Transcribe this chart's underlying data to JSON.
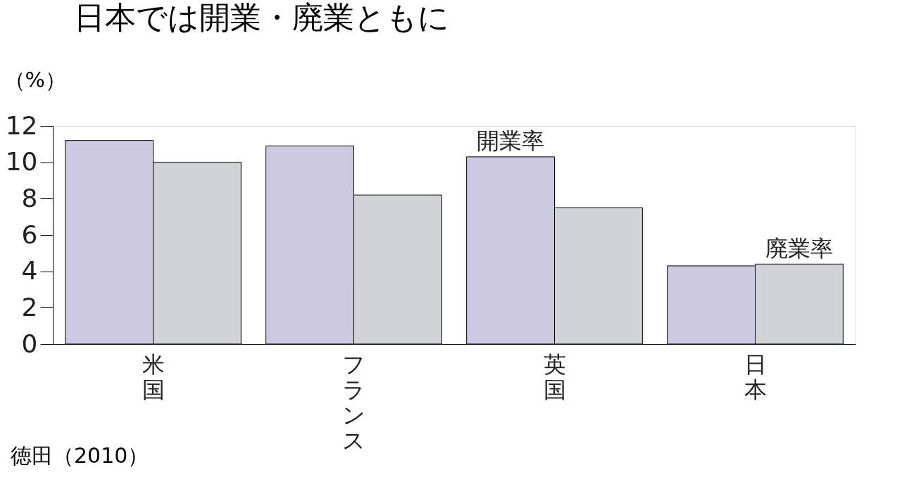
{
  "chart_data": {
    "type": "bar",
    "title": "日本では開業・廃業ともに",
    "ylabel": "（%）",
    "categories": [
      "米国",
      "フランス",
      "英国",
      "日本"
    ],
    "series": [
      {
        "name": "開業率",
        "color": "#cdc9df",
        "values": [
          11.2,
          10.9,
          10.3,
          4.3
        ]
      },
      {
        "name": "廃業率",
        "color": "#d2d3d5",
        "values": [
          10.0,
          8.2,
          7.5,
          4.4
        ]
      }
    ],
    "ylim": [
      0,
      12
    ],
    "yticks": [
      0,
      2,
      4,
      6,
      8,
      10,
      12
    ],
    "grid": false,
    "legend": false,
    "annotations": [
      "徳田（2010）"
    ]
  }
}
